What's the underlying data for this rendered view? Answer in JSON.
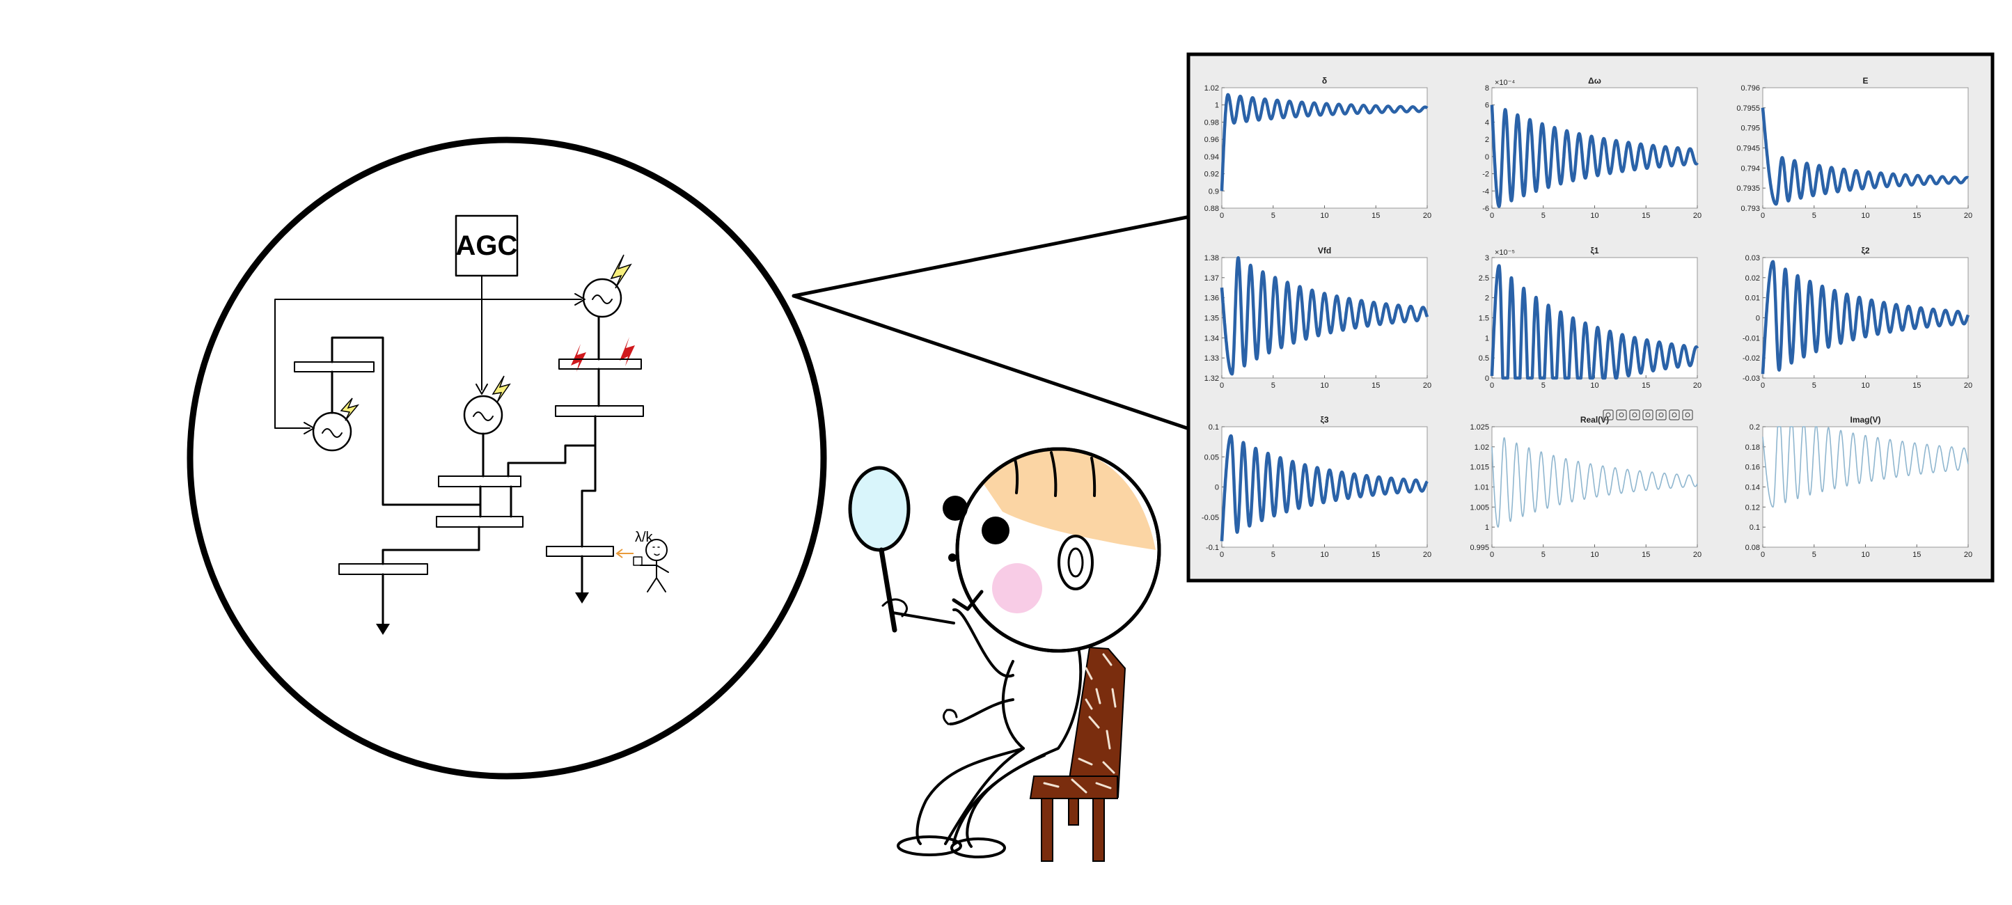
{
  "diagram": {
    "agc_label": "AGC",
    "operator_label": "λ/k"
  },
  "colors": {
    "outline": "#000000",
    "bolt_yellow": "#f7ef7c",
    "fault_red": "#d0191d",
    "face_fill": "#fbd5a4",
    "cheek_pink": "#f8cce6",
    "mirror_fill": "#d9f5fb",
    "chair_brown": "#7a2d0e",
    "panel_bg": "#ececec",
    "signal_blue": "#2a62a8",
    "signal_light": "#8fb6cf",
    "arrow_orange": "#e89a3a"
  },
  "figure_window": {
    "toolbar_icons": [
      "brush-icon",
      "print-icon",
      "save-icon",
      "pan-hand-icon",
      "zoom-in-icon",
      "zoom-out-icon",
      "home-icon"
    ]
  },
  "chart_data": [
    {
      "type": "line",
      "title": "δ",
      "xlim": [
        0,
        20
      ],
      "ylim": [
        0.88,
        1.02
      ],
      "xticks": [
        "0",
        "5",
        "10",
        "15",
        "20"
      ],
      "yticks": [
        "1.02",
        "1",
        "0.98",
        "0.96",
        "0.94",
        "0.92",
        "0.9",
        "0.88"
      ],
      "final_value": 0.995,
      "start_value": 0.9,
      "peak_value": 1.012,
      "peak_time": 0.6,
      "osc_period": 1.2,
      "decay_per_s": 0.1,
      "style": "thick"
    },
    {
      "type": "line",
      "title": "Δω",
      "exponent": "×10⁻⁴",
      "xlim": [
        0,
        20
      ],
      "ylim": [
        -6,
        8
      ],
      "xticks": [
        "0",
        "5",
        "10",
        "15",
        "20"
      ],
      "yticks": [
        "8",
        "6",
        "4",
        "2",
        "0",
        "-2",
        "-4",
        "-6"
      ],
      "final_value": 0,
      "start_value": 6,
      "peak_value": -5.8,
      "peak_time": 0.7,
      "osc_period": 1.2,
      "decay_per_s": 0.1,
      "style": "thick"
    },
    {
      "type": "line",
      "title": "E",
      "xlim": [
        0,
        20
      ],
      "ylim": [
        0.793,
        0.796
      ],
      "xticks": [
        "0",
        "5",
        "10",
        "15",
        "20"
      ],
      "yticks": [
        "0.796",
        "0.7955",
        "0.795",
        "0.7945",
        "0.794",
        "0.7935",
        "0.793"
      ],
      "final_value": 0.7937,
      "start_value": 0.7955,
      "peak_value": 0.7931,
      "peak_time": 1.3,
      "osc_period": 1.2,
      "decay_per_s": 0.12,
      "style": "thick"
    },
    {
      "type": "line",
      "title": "Vfd",
      "xlim": [
        0,
        20
      ],
      "ylim": [
        1.32,
        1.38
      ],
      "xticks": [
        "0",
        "5",
        "10",
        "15",
        "20"
      ],
      "yticks": [
        "1.38",
        "1.37",
        "1.36",
        "1.35",
        "1.34",
        "1.33",
        "1.32"
      ],
      "final_value": 1.352,
      "start_value": 1.365,
      "peak_value": 1.322,
      "peak_time": 1.0,
      "osc_period": 1.2,
      "decay_per_s": 0.12,
      "style": "thick"
    },
    {
      "type": "line",
      "title": "ξ1",
      "exponent": "×10⁻⁵",
      "xlim": [
        0,
        20
      ],
      "ylim": [
        0,
        3
      ],
      "xticks": [
        "0",
        "5",
        "10",
        "15",
        "20"
      ],
      "yticks": [
        "3",
        "2.5",
        "2",
        "1.5",
        "1",
        "0.5",
        "0"
      ],
      "final_value": 0.55,
      "start_value": 0.05,
      "peak_value": 2.8,
      "peak_time": 0.7,
      "osc_period": 1.2,
      "decay_per_s": 0.12,
      "style": "thick"
    },
    {
      "type": "line",
      "title": "ξ2",
      "xlim": [
        0,
        20
      ],
      "ylim": [
        -0.03,
        0.03
      ],
      "xticks": [
        "0",
        "5",
        "10",
        "15",
        "20"
      ],
      "yticks": [
        "0.03",
        "0.02",
        "0.01",
        "0",
        "-0.01",
        "-0.02",
        "-0.03"
      ],
      "final_value": 0,
      "start_value": -0.028,
      "peak_value": 0.028,
      "peak_time": 1.0,
      "osc_period": 1.2,
      "decay_per_s": 0.12,
      "style": "thick"
    },
    {
      "type": "line",
      "title": "ξ3",
      "xlim": [
        0,
        20
      ],
      "ylim": [
        -0.1,
        0.1
      ],
      "xticks": [
        "0",
        "5",
        "10",
        "15",
        "20"
      ],
      "yticks": [
        "0.1",
        "0.05",
        "0",
        "-0.05",
        "-0.1"
      ],
      "final_value": 0.002,
      "start_value": -0.09,
      "peak_value": 0.085,
      "peak_time": 0.9,
      "osc_period": 1.2,
      "decay_per_s": 0.12,
      "style": "thick"
    },
    {
      "type": "line",
      "title": "Real(V)",
      "xlim": [
        0,
        20
      ],
      "ylim": [
        0.995,
        1.025
      ],
      "xticks": [
        "0",
        "5",
        "10",
        "15",
        "20"
      ],
      "yticks": [
        "1.025",
        "1.02",
        "1.015",
        "1.01",
        "1.005",
        "1",
        "0.995"
      ],
      "final_value": 1.0115,
      "start_value": 1.02,
      "peak_value": 1.0,
      "peak_time": 0.6,
      "osc_period": 1.2,
      "decay_per_s": 0.11,
      "style": "thin"
    },
    {
      "type": "line",
      "title": "Imag(V)",
      "xlim": [
        0,
        20
      ],
      "ylim": [
        0.08,
        0.2
      ],
      "xticks": [
        "0",
        "5",
        "10",
        "15",
        "20"
      ],
      "yticks": [
        "0.2",
        "0.18",
        "0.16",
        "0.14",
        "0.12",
        "0.1",
        "0.08"
      ],
      "final_value": 0.168,
      "start_value": 0.19,
      "peak_value": 0.12,
      "peak_time": 1.0,
      "osc_period": 1.2,
      "decay_per_s": 0.08,
      "style": "thin"
    }
  ]
}
